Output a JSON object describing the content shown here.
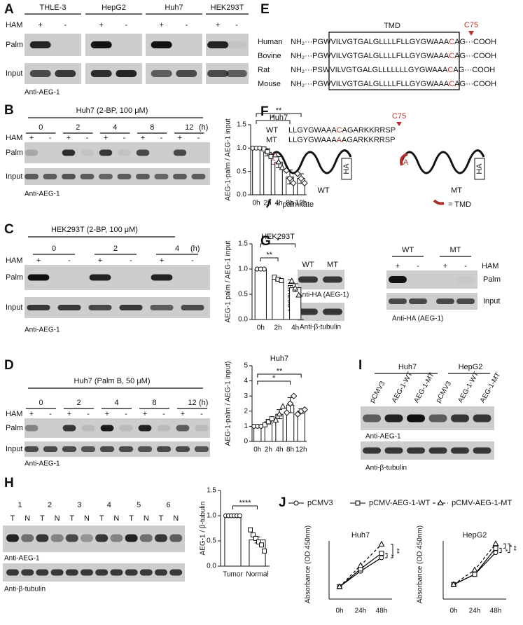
{
  "panels": {
    "A": {
      "letter": "A",
      "groups": [
        "THLE-3",
        "HepG2",
        "Huh7",
        "HEK293T"
      ],
      "ham_label": "HAM",
      "ham": [
        "+",
        "-",
        "+",
        "-",
        "+",
        "-",
        "+",
        "-"
      ],
      "rows": [
        "Palm",
        "Input"
      ],
      "antibody": "Anti-AEG-1"
    },
    "B": {
      "letter": "B",
      "header": "Huh7 (2-BP, 100 μM)",
      "times": [
        "0",
        "2",
        "4",
        "8",
        "12"
      ],
      "unit": "(h)",
      "ham_label": "HAM",
      "ham": [
        "+",
        "-",
        "+",
        "-",
        "+",
        "-",
        "+",
        "-",
        "+",
        "-"
      ],
      "rows": [
        "Palm",
        "Input"
      ],
      "antibody": "Anti-AEG-1"
    },
    "C": {
      "letter": "C",
      "header": "HEK293T (2-BP, 100 μM)",
      "times": [
        "0",
        "2",
        "4"
      ],
      "unit": "(h)",
      "ham_label": "HAM",
      "ham": [
        "+",
        "-",
        "+",
        "-",
        "+",
        "-"
      ],
      "rows": [
        "Palm",
        "Input"
      ],
      "antibody": "Anti-AEG-1"
    },
    "D": {
      "letter": "D",
      "header": "Huh7 (Palm B, 50 μM)",
      "times": [
        "0",
        "2",
        "4",
        "8",
        "12"
      ],
      "unit": "(h)",
      "ham_label": "HAM",
      "ham": [
        "+",
        "-",
        "+",
        "-",
        "+",
        "-",
        "+",
        "-",
        "+",
        "-"
      ],
      "rows": [
        "Palm",
        "Input"
      ],
      "antibody": "Anti-AEG-1"
    },
    "E": {
      "letter": "E",
      "box_label": "TMD",
      "site": "C75",
      "rows": [
        {
          "species": "Human",
          "nh2": "NH₂",
          "pre": "···PG",
          "seq_a": "WVILVGTGALGLLLLFLLGYGWAAA",
          "site": "C",
          "seq_b": "AG",
          "post": "···COOH"
        },
        {
          "species": "Bovine",
          "nh2": "NH₂",
          "pre": "···PG",
          "seq_a": "WVILVGTGALGLLLLFLLGYGWAAA",
          "site": "C",
          "seq_b": "AG",
          "post": "···COOH"
        },
        {
          "species": "Rat",
          "nh2": "NH₂",
          "pre": "···PS",
          "seq_a": "WVILVGTGALGLLLLLLLGYGWAAA",
          "site": "C",
          "seq_b": "AG",
          "post": "···COOH"
        },
        {
          "species": "Mouse",
          "nh2": "NH₂",
          "pre": "···PG",
          "seq_a": "WVILVGTGALGLLLLFLLGYGWAAA",
          "site": "C",
          "seq_b": "AG",
          "post": "···COOH"
        }
      ]
    },
    "F": {
      "letter": "F",
      "site": "C75",
      "wt_label": "WT",
      "wt_seq_a": "LLGYGWAAA",
      "wt_site": "C",
      "wt_seq_b": "AGARKKRRSP",
      "mt_label": "MT",
      "mt_seq_a": "LLGYGWAAA",
      "mt_site": "A",
      "mt_seq_b": "AGARKKRRSP",
      "wt_residue": "C",
      "mt_residue": "A",
      "wt_tag": "HA",
      "mt_tag": "HA",
      "wt_name": "WT",
      "mt_name": "MT",
      "palmitate_legend": "= palmitate",
      "tmd_legend": "= TMD"
    },
    "G": {
      "letter": "G",
      "cell_line": "HEK293T",
      "left_lanes": [
        "WT",
        "MT"
      ],
      "left_antibodies": [
        "Anti-HA (AEG-1)",
        "Anti-β-tubulin"
      ],
      "right_groups": [
        "WT",
        "MT"
      ],
      "ham_label": "HAM",
      "ham": [
        "+",
        "-",
        "+",
        "-"
      ],
      "rows": [
        "Palm",
        "Input"
      ],
      "right_antibody": "Anti-HA (AEG-1)"
    },
    "H": {
      "letter": "H",
      "samples": [
        "1",
        "2",
        "3",
        "4",
        "5",
        "6"
      ],
      "lanes": [
        "T",
        "N",
        "T",
        "N",
        "T",
        "N",
        "T",
        "N",
        "T",
        "N",
        "T",
        "N"
      ],
      "antibodies": [
        "Anti-AEG-1",
        "Anti-β-tubulin"
      ]
    },
    "I": {
      "letter": "I",
      "groups": [
        "Huh7",
        "HepG2"
      ],
      "lanes": [
        "pCMV3",
        "AEG-1-WT",
        "AEG-1-MT",
        "pCMV3",
        "AEG-1-WT",
        "AEG-1-MT"
      ],
      "antibodies": [
        "Anti-AEG-1",
        "Anti-β-tubulin"
      ]
    },
    "J": {
      "letter": "J"
    }
  },
  "chart_data": [
    {
      "type": "bar",
      "title": "Huh7",
      "ylabel": "AEG-1-palm / AEG-1 input",
      "categories": [
        "0h",
        "2h",
        "4h",
        "8h",
        "12h"
      ],
      "values": [
        1.0,
        0.91,
        0.7,
        0.38,
        0.35
      ],
      "errors": [
        0.0,
        0.08,
        0.12,
        0.15,
        0.1
      ],
      "points": [
        [
          1,
          1,
          1
        ],
        [
          0.98,
          0.92,
          0.82
        ],
        [
          0.85,
          0.7,
          0.58
        ],
        [
          0.52,
          0.35,
          0.25
        ],
        [
          0.45,
          0.35,
          0.25
        ]
      ],
      "color": "#ffffff",
      "ylim": [
        0,
        1.5
      ],
      "yticks": [
        {
          "value": 0,
          "label": "0.0"
        },
        {
          "value": 0.5,
          "label": "0.5"
        },
        {
          "value": 1,
          "label": "1.0"
        },
        {
          "value": 1.5,
          "label": "1.5"
        }
      ],
      "significance": [
        "*",
        "**"
      ]
    },
    {
      "type": "bar",
      "title": "HEK293T",
      "ylabel": "AEG-1 palm / AEG-1 input",
      "categories": [
        "0h",
        "2h",
        "4h"
      ],
      "values": [
        1.0,
        0.8,
        0.63
      ],
      "errors": [
        0.0,
        0.03,
        0.08
      ],
      "points": [
        [
          1,
          1,
          1
        ],
        [
          0.84,
          0.8,
          0.77
        ],
        [
          0.76,
          0.62,
          0.48
        ]
      ],
      "color": "#ffffff",
      "ylim": [
        0,
        1.5
      ],
      "yticks": [
        {
          "value": 0,
          "label": "0.0"
        },
        {
          "value": 0.5,
          "label": "0.5"
        },
        {
          "value": 1,
          "label": "1.0"
        },
        {
          "value": 1.5,
          "label": "1.5"
        }
      ],
      "significance": [
        "**",
        "*"
      ]
    },
    {
      "type": "bar",
      "title": "Huh7",
      "ylabel": "AEG-1-palm / AEG-1 input)",
      "categories": [
        "0h",
        "2h",
        "4h",
        "8h",
        "12h"
      ],
      "values": [
        1.0,
        1.3,
        1.8,
        2.4,
        2.0
      ],
      "errors": [
        0.0,
        0.15,
        0.3,
        0.5,
        0.15
      ],
      "points": [
        [
          1,
          1,
          1
        ],
        [
          1.1,
          1.3,
          1.5
        ],
        [
          1.4,
          1.8,
          2.3
        ],
        [
          1.9,
          2.5,
          3.0
        ],
        [
          1.8,
          2.0,
          2.1
        ]
      ],
      "color": "#ffffff",
      "ylim": [
        0,
        5
      ],
      "yticks": [
        0,
        1,
        2,
        3,
        4,
        5
      ],
      "significance": [
        "*",
        "**"
      ]
    },
    {
      "type": "bar",
      "ylabel": "AEG-1 / β-tubulin",
      "categories": [
        "Tumor",
        "Normal"
      ],
      "values": [
        1.0,
        0.52
      ],
      "errors": [
        0.0,
        0.06
      ],
      "points": [
        [
          1,
          1,
          1,
          1,
          1,
          1
        ],
        [
          0.72,
          0.62,
          0.55,
          0.48,
          0.42,
          0.3
        ]
      ],
      "color": "#ffffff",
      "ylim": [
        0,
        1.5
      ],
      "yticks": [
        {
          "value": 0,
          "label": "0.0"
        },
        {
          "value": 0.5,
          "label": "0.5"
        },
        {
          "value": 1,
          "label": "1.0"
        },
        {
          "value": 1.5,
          "label": "1.5"
        }
      ],
      "significance": [
        "****"
      ]
    },
    {
      "type": "line",
      "title": "Huh7",
      "ylabel": "Absorbance (OD 450nm)",
      "categories": [
        "0h",
        "24h",
        "48h"
      ],
      "series": [
        {
          "name": "pCMV3",
          "color": "#000000",
          "marker": "circle",
          "dashed": false,
          "values": [
            0.55,
            1.25,
            1.85
          ]
        },
        {
          "name": "pCMV-AEG-1-WT",
          "color": "#000000",
          "marker": "square",
          "dashed": false,
          "values": [
            0.55,
            1.35,
            2.05
          ]
        },
        {
          "name": "pCMV-AEG-1-MT",
          "color": "#000000",
          "marker": "triangle",
          "dashed": true,
          "values": [
            0.55,
            1.5,
            2.45
          ]
        }
      ],
      "ylim": [
        0,
        2.6
      ],
      "significance": [
        "*",
        "**"
      ]
    },
    {
      "type": "line",
      "title": "HepG2",
      "ylabel": "Absorbance (OD 450nm)",
      "categories": [
        "0h",
        "24h",
        "48h"
      ],
      "series": [
        {
          "color": "#000000",
          "marker": "circle",
          "dashed": false,
          "values": [
            0.5,
            0.85,
            1.6
          ]
        },
        {
          "color": "#000000",
          "marker": "square",
          "dashed": false,
          "values": [
            0.5,
            0.85,
            1.75
          ]
        },
        {
          "color": "#000000",
          "marker": "triangle",
          "dashed": true,
          "values": [
            0.5,
            1.0,
            1.9
          ]
        }
      ],
      "ylim": [
        0,
        2.0
      ],
      "significance": [
        "*",
        "*",
        "**"
      ]
    }
  ]
}
